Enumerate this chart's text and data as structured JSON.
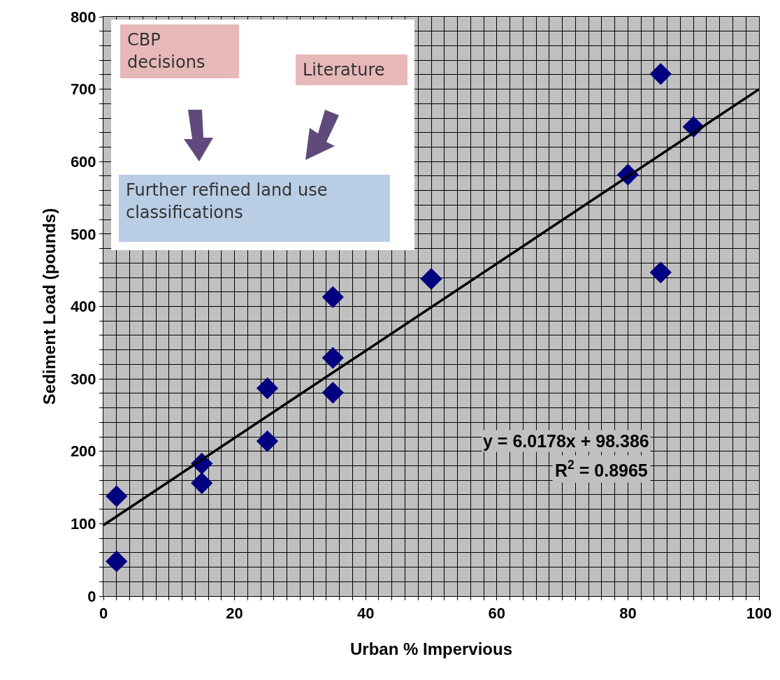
{
  "chart_data": {
    "type": "scatter",
    "xlabel": "Urban % Impervious",
    "ylabel": "Sediment Load (pounds)",
    "x": [
      2,
      2,
      15,
      15,
      25,
      25,
      35,
      35,
      35,
      50,
      80,
      85,
      85,
      90
    ],
    "series": [
      {
        "color": "#000080",
        "marker": "diamond",
        "values": [
          138,
          48,
          183,
          156,
          287,
          214,
          413,
          329,
          281,
          438,
          582,
          721,
          447,
          648
        ]
      },
      {
        "type": "line",
        "color": "#000000",
        "marker": "none",
        "line_style": "solid",
        "x": [
          0,
          100
        ],
        "values": [
          98,
          700
        ]
      }
    ],
    "xlim": [
      0,
      100
    ],
    "ylim": [
      0,
      800
    ],
    "xticks": [
      0,
      {
        "value": 2,
        "label": null
      },
      {
        "value": 4,
        "label": null
      },
      {
        "value": 6,
        "label": null
      },
      {
        "value": 8,
        "label": null
      },
      {
        "value": 10,
        "label": null
      },
      {
        "value": 12,
        "label": null
      },
      {
        "value": 14,
        "label": null
      },
      {
        "value": 16,
        "label": null
      },
      {
        "value": 18,
        "label": null
      },
      20,
      {
        "value": 22,
        "label": null
      },
      {
        "value": 24,
        "label": null
      },
      {
        "value": 26,
        "label": null
      },
      {
        "value": 28,
        "label": null
      },
      {
        "value": 30,
        "label": null
      },
      {
        "value": 32,
        "label": null
      },
      {
        "value": 34,
        "label": null
      },
      {
        "value": 36,
        "label": null
      },
      {
        "value": 38,
        "label": null
      },
      40,
      {
        "value": 42,
        "label": null
      },
      {
        "value": 44,
        "label": null
      },
      {
        "value": 46,
        "label": null
      },
      {
        "value": 48,
        "label": null
      },
      {
        "value": 50,
        "label": null
      },
      {
        "value": 52,
        "label": null
      },
      {
        "value": 54,
        "label": null
      },
      {
        "value": 56,
        "label": null
      },
      {
        "value": 58,
        "label": null
      },
      60,
      {
        "value": 62,
        "label": null
      },
      {
        "value": 64,
        "label": null
      },
      {
        "value": 66,
        "label": null
      },
      {
        "value": 68,
        "label": null
      },
      {
        "value": 70,
        "label": null
      },
      {
        "value": 72,
        "label": null
      },
      {
        "value": 74,
        "label": null
      },
      {
        "value": 76,
        "label": null
      },
      {
        "value": 78,
        "label": null
      },
      80,
      {
        "value": 82,
        "label": null
      },
      {
        "value": 84,
        "label": null
      },
      {
        "value": 86,
        "label": null
      },
      {
        "value": 88,
        "label": null
      },
      {
        "value": 90,
        "label": null
      },
      {
        "value": 92,
        "label": null
      },
      {
        "value": 94,
        "label": null
      },
      {
        "value": 96,
        "label": null
      },
      {
        "value": 98,
        "label": null
      },
      100
    ],
    "yticks": [
      0,
      {
        "value": 20,
        "label": null
      },
      {
        "value": 40,
        "label": null
      },
      {
        "value": 60,
        "label": null
      },
      {
        "value": 80,
        "label": null
      },
      100,
      {
        "value": 120,
        "label": null
      },
      {
        "value": 140,
        "label": null
      },
      {
        "value": 160,
        "label": null
      },
      {
        "value": 180,
        "label": null
      },
      200,
      {
        "value": 220,
        "label": null
      },
      {
        "value": 240,
        "label": null
      },
      {
        "value": 260,
        "label": null
      },
      {
        "value": 280,
        "label": null
      },
      300,
      {
        "value": 320,
        "label": null
      },
      {
        "value": 340,
        "label": null
      },
      {
        "value": 360,
        "label": null
      },
      {
        "value": 380,
        "label": null
      },
      400,
      {
        "value": 420,
        "label": null
      },
      {
        "value": 440,
        "label": null
      },
      {
        "value": 460,
        "label": null
      },
      {
        "value": 480,
        "label": null
      },
      500,
      {
        "value": 520,
        "label": null
      },
      {
        "value": 540,
        "label": null
      },
      {
        "value": 560,
        "label": null
      },
      {
        "value": 580,
        "label": null
      },
      600,
      {
        "value": 620,
        "label": null
      },
      {
        "value": 640,
        "label": null
      },
      {
        "value": 660,
        "label": null
      },
      {
        "value": 680,
        "label": null
      },
      700,
      {
        "value": 720,
        "label": null
      },
      {
        "value": 740,
        "label": null
      },
      {
        "value": 760,
        "label": null
      },
      {
        "value": 780,
        "label": null
      },
      800
    ],
    "grid": true,
    "annotations": [
      "CBP decisions",
      "Literature",
      "Further refined land use classifications",
      "y = 6.0178x + 98.386",
      "R$^{2}$ = 0.8965"
    ]
  }
}
